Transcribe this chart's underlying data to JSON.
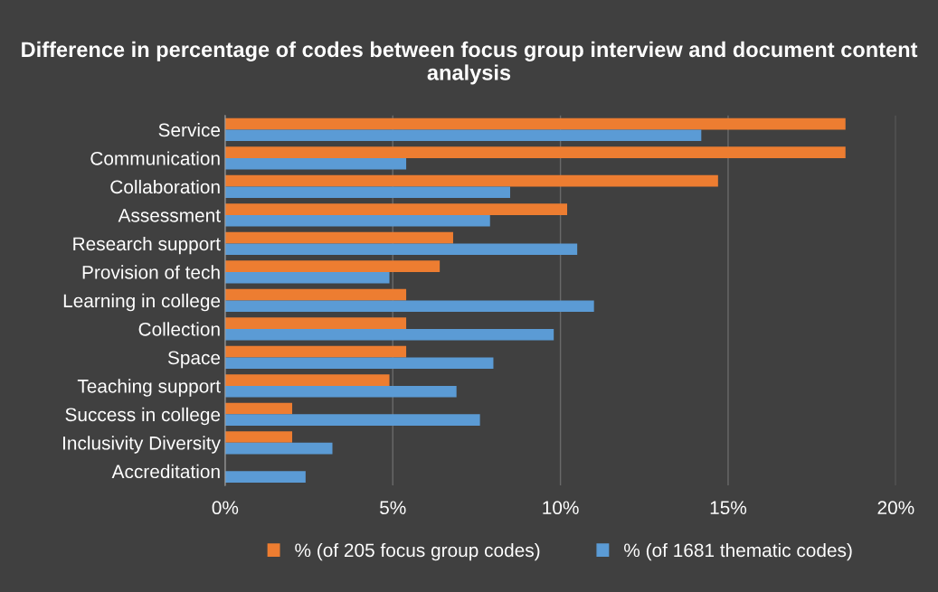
{
  "chart_data": {
    "type": "bar",
    "orientation": "horizontal",
    "title": "Difference in percentage of codes between focus group interview and document content analysis",
    "categories": [
      "Service",
      "Communication",
      "Collaboration",
      "Assessment",
      "Research support",
      "Provision of tech",
      "Learning in college",
      "Collection",
      "Space",
      "Teaching support",
      "Success in college",
      "Inclusivity Diversity",
      "Accreditation"
    ],
    "series": [
      {
        "name": "% (of 205 focus group codes)",
        "color": "#ed7d31",
        "values": [
          18.5,
          18.5,
          14.7,
          10.2,
          6.8,
          6.4,
          5.4,
          5.4,
          5.4,
          4.9,
          2.0,
          2.0,
          0
        ]
      },
      {
        "name": "% (of 1681 thematic codes)",
        "color": "#5b9bd5",
        "values": [
          14.2,
          5.4,
          8.5,
          7.9,
          10.5,
          4.9,
          11.0,
          9.8,
          8.0,
          6.9,
          7.6,
          3.2,
          2.4
        ]
      }
    ],
    "xlim": [
      0,
      20
    ],
    "xticks": [
      {
        "value": 0,
        "label": "0%"
      },
      {
        "value": 5,
        "label": "5%"
      },
      {
        "value": 10,
        "label": "10%"
      },
      {
        "value": 15,
        "label": "15%"
      },
      {
        "value": 20,
        "label": "20%"
      }
    ],
    "grid": "x",
    "legend": "bottom"
  }
}
